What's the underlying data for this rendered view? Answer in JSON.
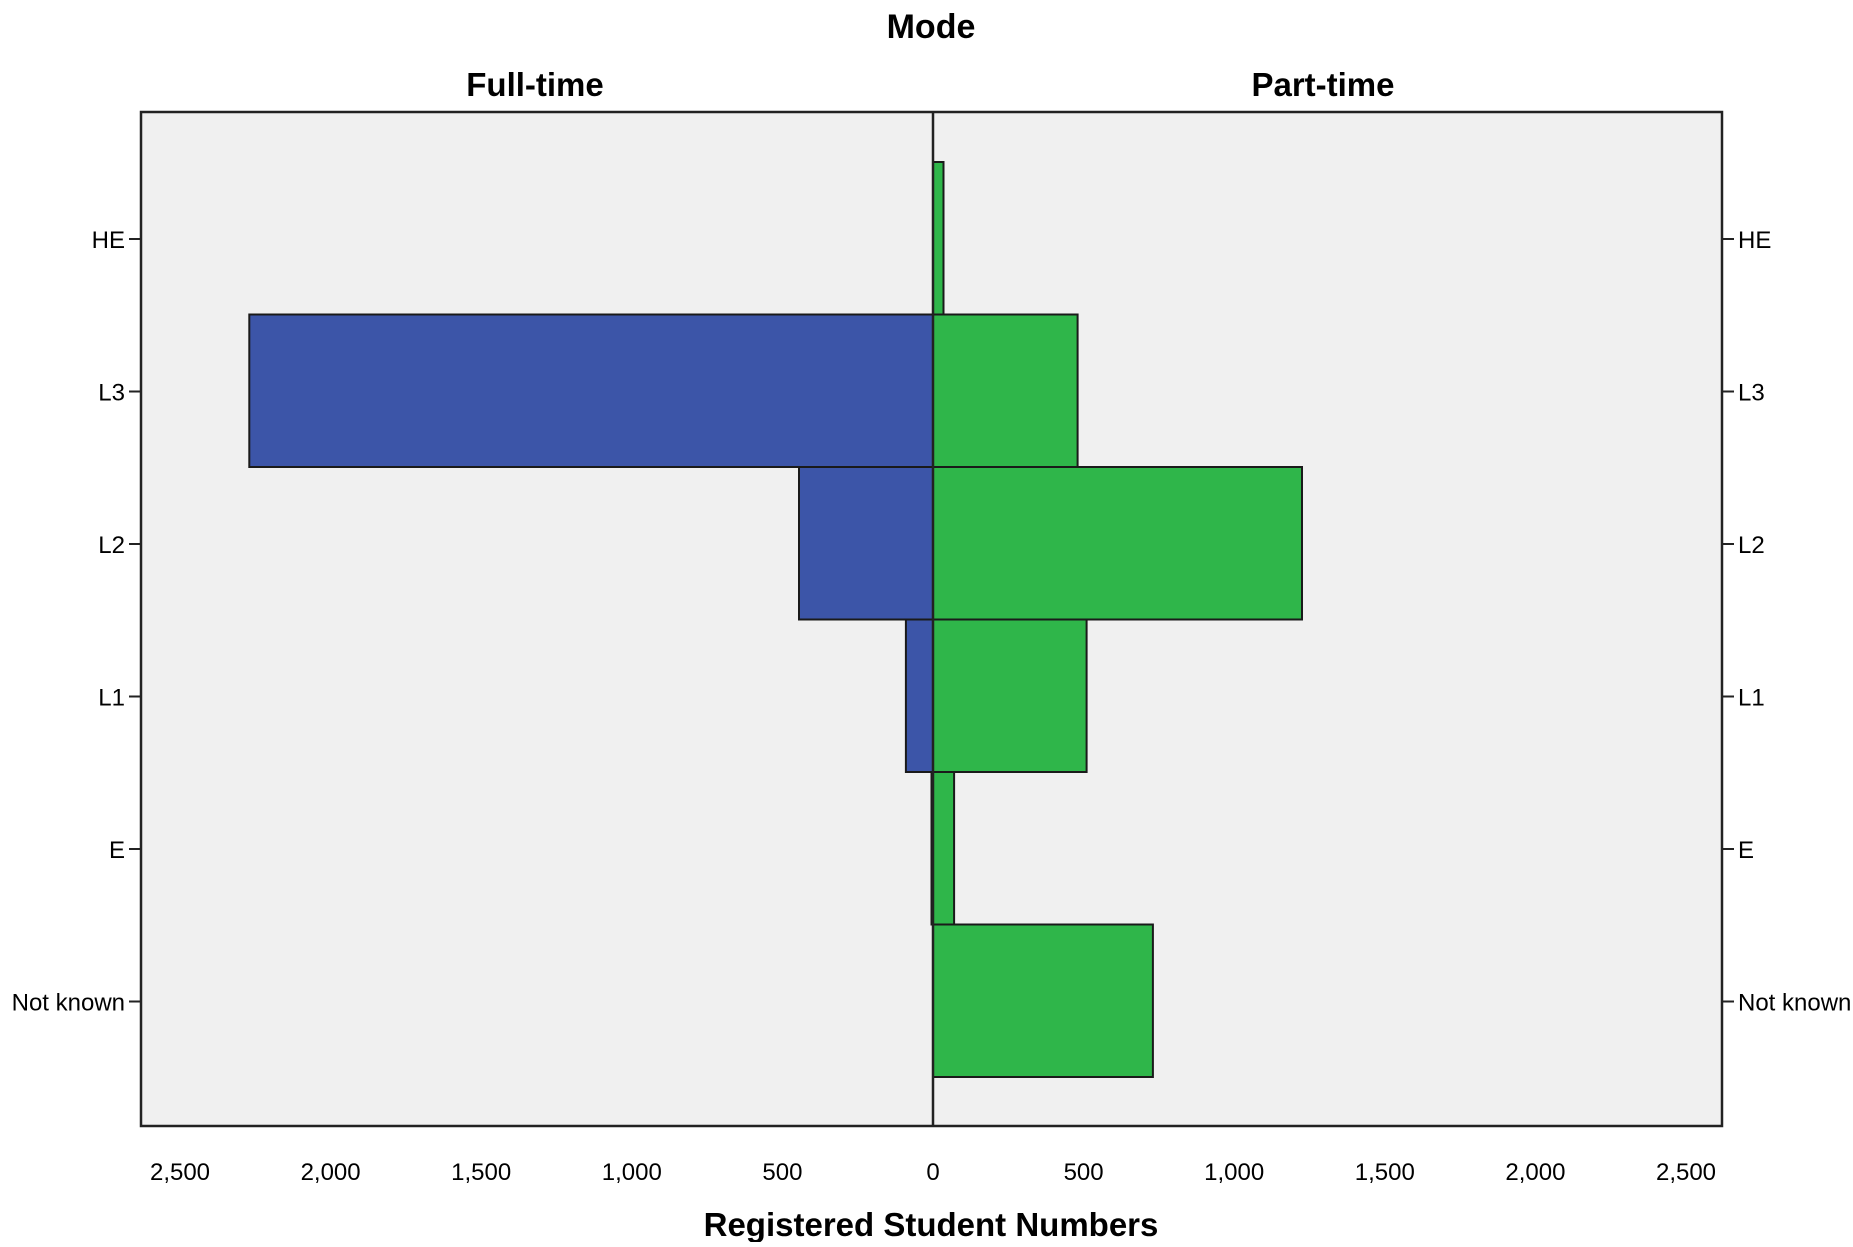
{
  "chart_data": {
    "type": "bar",
    "orientation": "horizontal",
    "layout": "back-to-back (population pyramid)",
    "title": "Mode",
    "xlabel": "Registered Student Numbers",
    "categories": [
      "HE",
      "L3",
      "L2",
      "L1",
      "E",
      "Not known"
    ],
    "series": [
      {
        "name": "Full-time",
        "side": "left",
        "color": "#3c55a8",
        "values": [
          0,
          2270,
          445,
          90,
          5,
          0
        ]
      },
      {
        "name": "Part-time",
        "side": "right",
        "color": "#2fb64a",
        "values": [
          35,
          480,
          1225,
          510,
          70,
          730
        ]
      }
    ],
    "xlim": [
      0,
      2500
    ],
    "xticks": [
      2500,
      2000,
      1500,
      1000,
      500,
      0
    ],
    "xtick_labels": [
      "2,500",
      "2,000",
      "1,500",
      "1,000",
      "500",
      "0"
    ],
    "right_xticks": [
      0,
      500,
      1000,
      1500,
      2000,
      2500
    ],
    "right_xtick_labels": [
      "0",
      "500",
      "1,000",
      "1,500",
      "2,000",
      "2,500"
    ],
    "grid": false,
    "plot_background": "#f0f0f0"
  }
}
